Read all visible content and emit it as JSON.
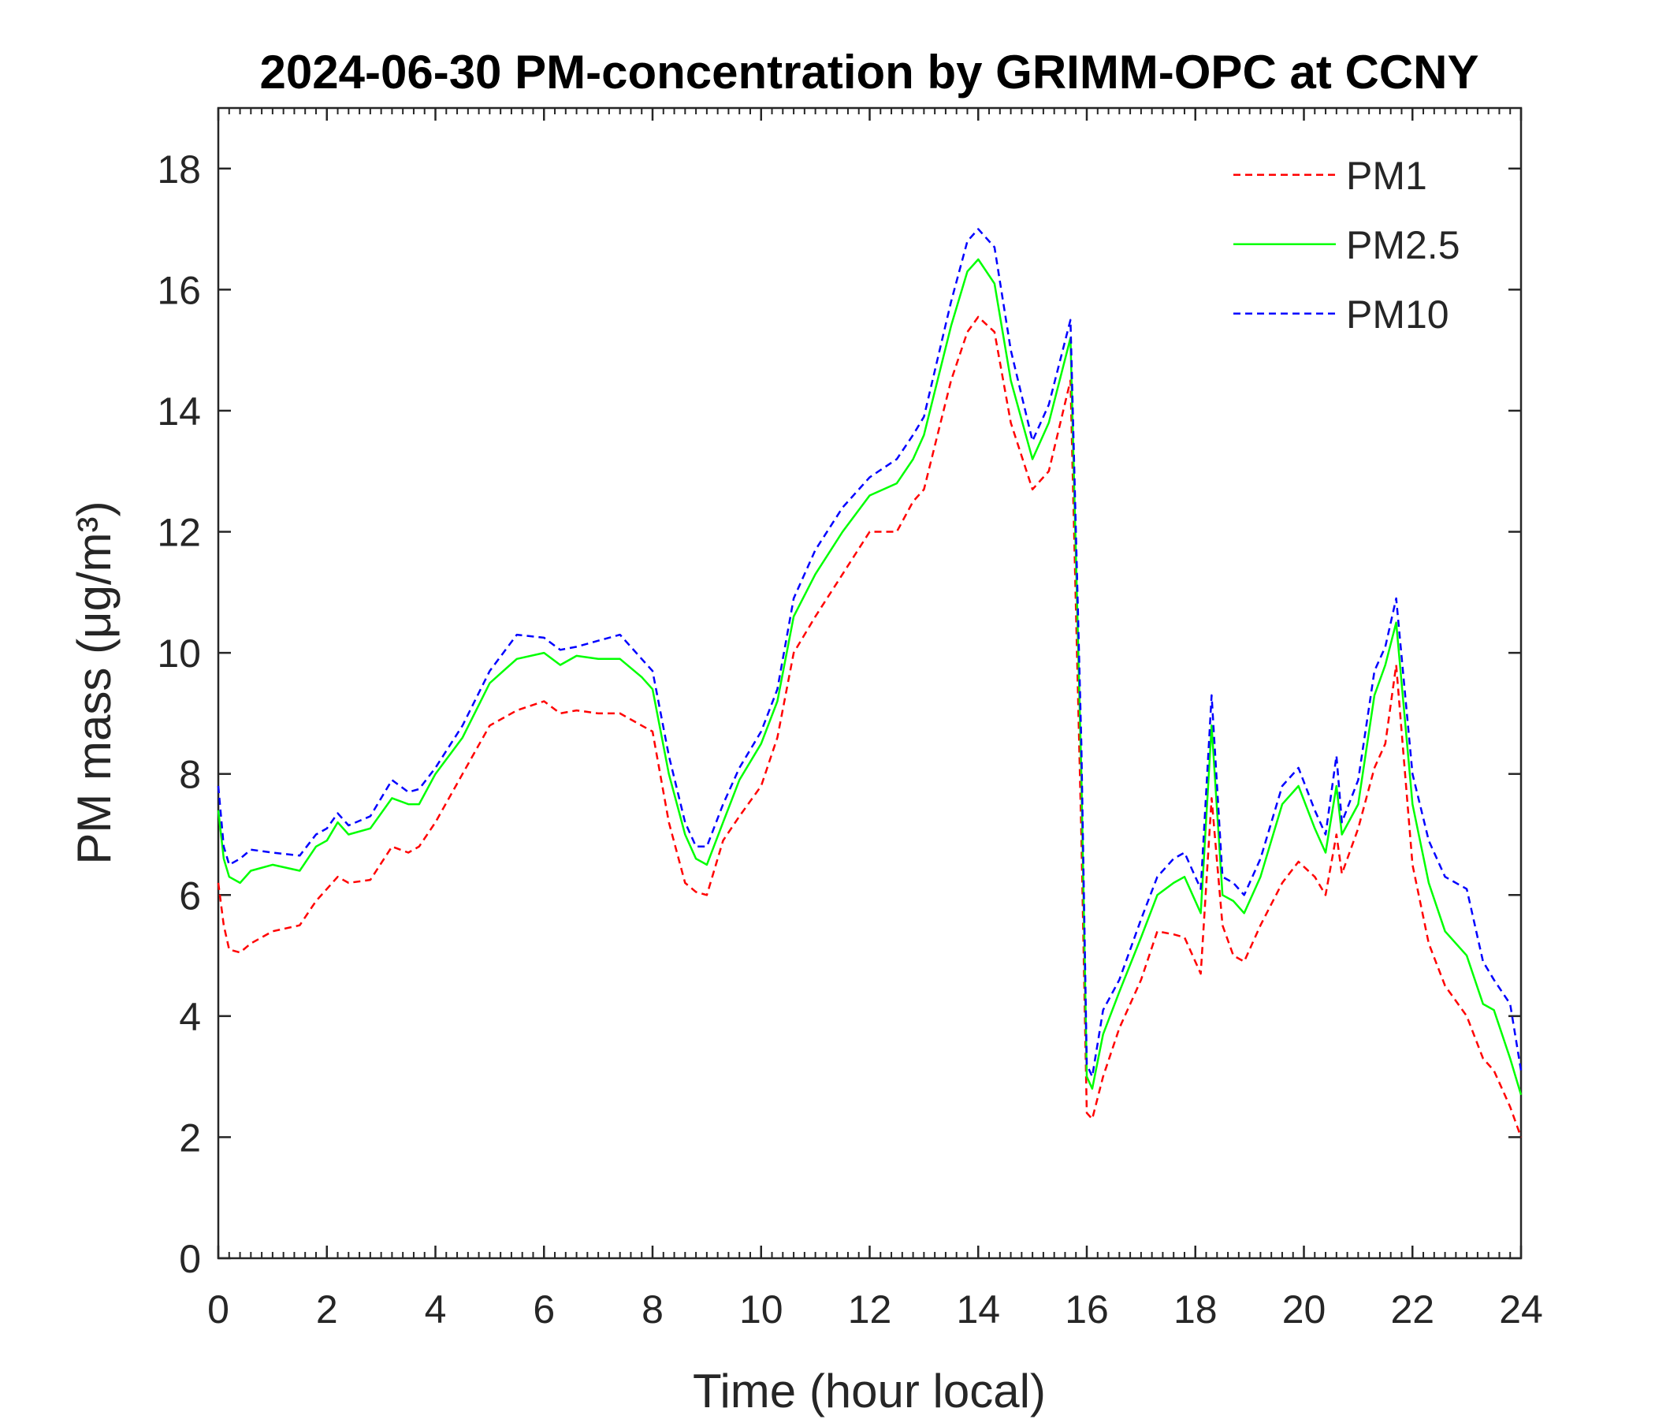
{
  "chart_data": {
    "type": "line",
    "title": "2024-06-30 PM-concentration by GRIMM-OPC at CCNY",
    "xlabel": "Time (hour local)",
    "ylabel": "PM mass (μg/m³)",
    "xlim": [
      0,
      24
    ],
    "ylim": [
      0,
      19
    ],
    "xticks": [
      0,
      2,
      4,
      6,
      8,
      10,
      12,
      14,
      16,
      18,
      20,
      22,
      24
    ],
    "yticks": [
      0,
      2,
      4,
      6,
      8,
      10,
      12,
      14,
      16,
      18
    ],
    "grid": false,
    "legend_position": "top-right",
    "x": [
      0,
      0.1,
      0.2,
      0.4,
      0.6,
      1,
      1.5,
      1.8,
      2,
      2.2,
      2.4,
      2.8,
      3.2,
      3.5,
      3.7,
      4,
      4.5,
      5,
      5.5,
      6,
      6.3,
      6.6,
      7,
      7.4,
      7.8,
      8,
      8.3,
      8.6,
      8.8,
      9,
      9.3,
      9.6,
      10,
      10.3,
      10.6,
      11,
      11.5,
      12,
      12.5,
      12.8,
      13,
      13.5,
      13.8,
      14,
      14.3,
      14.6,
      15,
      15.3,
      15.7,
      15.9,
      16,
      16.1,
      16.3,
      16.6,
      17,
      17.3,
      17.6,
      17.8,
      18.1,
      18.3,
      18.5,
      18.7,
      18.9,
      19.2,
      19.6,
      19.9,
      20.2,
      20.4,
      20.6,
      20.7,
      21,
      21.3,
      21.5,
      21.7,
      22,
      22.3,
      22.6,
      23,
      23.3,
      23.5,
      23.8,
      24
    ],
    "series": [
      {
        "name": "PM1",
        "color": "#ff0000",
        "style": "dashed",
        "values": [
          6.2,
          5.5,
          5.1,
          5.05,
          5.2,
          5.4,
          5.5,
          5.9,
          6.1,
          6.3,
          6.2,
          6.25,
          6.8,
          6.7,
          6.8,
          7.2,
          8.0,
          8.8,
          9.05,
          9.2,
          9.0,
          9.05,
          9.0,
          9.0,
          8.8,
          8.7,
          7.2,
          6.2,
          6.05,
          6.0,
          6.9,
          7.3,
          7.8,
          8.6,
          10.0,
          10.6,
          11.3,
          12.0,
          12.0,
          12.5,
          12.7,
          14.5,
          15.3,
          15.55,
          15.3,
          13.8,
          12.7,
          13.0,
          14.5,
          7.0,
          2.4,
          2.3,
          3.0,
          3.8,
          4.6,
          5.4,
          5.35,
          5.3,
          4.7,
          7.6,
          5.5,
          5.0,
          4.9,
          5.5,
          6.2,
          6.55,
          6.3,
          6.0,
          7.0,
          6.35,
          7.1,
          8.1,
          8.5,
          9.8,
          6.5,
          5.2,
          4.5,
          4.0,
          3.3,
          3.1,
          2.5,
          2.0
        ]
      },
      {
        "name": "PM2.5",
        "color": "#00ff00",
        "style": "solid",
        "values": [
          7.4,
          6.6,
          6.3,
          6.2,
          6.4,
          6.5,
          6.4,
          6.8,
          6.9,
          7.2,
          7.0,
          7.1,
          7.6,
          7.5,
          7.5,
          8.0,
          8.6,
          9.5,
          9.9,
          10.0,
          9.8,
          9.95,
          9.9,
          9.9,
          9.6,
          9.4,
          8.0,
          7.0,
          6.6,
          6.5,
          7.2,
          7.9,
          8.5,
          9.2,
          10.6,
          11.3,
          12.0,
          12.6,
          12.8,
          13.2,
          13.6,
          15.4,
          16.3,
          16.5,
          16.1,
          14.5,
          13.2,
          13.8,
          15.2,
          8.0,
          3.0,
          2.8,
          3.7,
          4.4,
          5.3,
          6.0,
          6.2,
          6.3,
          5.7,
          8.8,
          6.0,
          5.9,
          5.7,
          6.3,
          7.5,
          7.8,
          7.1,
          6.7,
          7.8,
          7.0,
          7.5,
          9.3,
          9.8,
          10.5,
          7.5,
          6.2,
          5.4,
          5.0,
          4.2,
          4.1,
          3.3,
          2.7
        ]
      },
      {
        "name": "PM10",
        "color": "#0000ff",
        "style": "dashed",
        "values": [
          7.8,
          6.8,
          6.5,
          6.6,
          6.75,
          6.7,
          6.65,
          7.0,
          7.1,
          7.35,
          7.15,
          7.3,
          7.9,
          7.7,
          7.75,
          8.1,
          8.8,
          9.7,
          10.3,
          10.25,
          10.05,
          10.1,
          10.2,
          10.3,
          9.9,
          9.7,
          8.3,
          7.2,
          6.8,
          6.8,
          7.5,
          8.1,
          8.7,
          9.4,
          10.9,
          11.7,
          12.4,
          12.9,
          13.2,
          13.6,
          13.9,
          15.8,
          16.8,
          17.0,
          16.7,
          15.0,
          13.5,
          14.1,
          15.5,
          8.5,
          3.2,
          3.0,
          4.1,
          4.6,
          5.6,
          6.3,
          6.6,
          6.7,
          6.1,
          9.3,
          6.3,
          6.2,
          6.0,
          6.6,
          7.8,
          8.1,
          7.4,
          7.0,
          8.3,
          7.2,
          7.9,
          9.7,
          10.1,
          10.9,
          8.0,
          6.9,
          6.3,
          6.1,
          4.9,
          4.6,
          4.2,
          3.1
        ]
      }
    ]
  }
}
